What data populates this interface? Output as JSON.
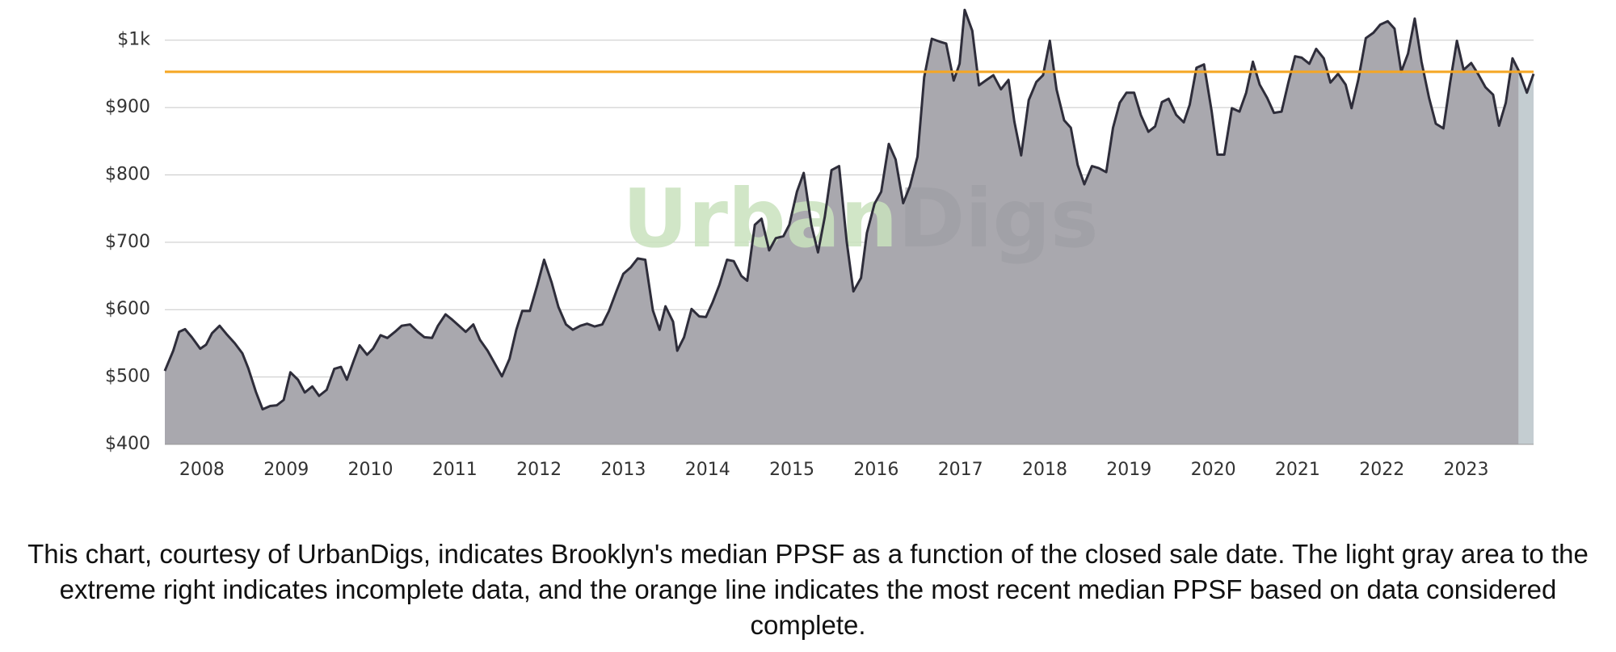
{
  "chart_data": {
    "type": "area",
    "watermark": [
      "Urban",
      "Digs"
    ],
    "caption": "This chart, courtesy of UrbanDigs, indicates Brooklyn's median PPSF as a function of the closed sale date. The light gray area to the extreme right indicates incomplete data, and the orange line indicates the most recent median PPSF based on data considered complete.",
    "x": [
      2007.56,
      2007.66,
      2007.73,
      2007.8,
      2007.88,
      2007.98,
      2008.05,
      2008.12,
      2008.21,
      2008.29,
      2008.39,
      2008.48,
      2008.55,
      2008.64,
      2008.72,
      2008.81,
      2008.89,
      2008.97,
      2009.05,
      2009.14,
      2009.22,
      2009.31,
      2009.39,
      2009.48,
      2009.57,
      2009.65,
      2009.72,
      2009.8,
      2009.87,
      2009.96,
      2010.03,
      2010.12,
      2010.2,
      2010.29,
      2010.37,
      2010.47,
      2010.56,
      2010.64,
      2010.73,
      2010.8,
      2010.89,
      2010.97,
      2011.06,
      2011.13,
      2011.22,
      2011.3,
      2011.39,
      2011.47,
      2011.56,
      2011.65,
      2011.73,
      2011.8,
      2011.89,
      2011.98,
      2012.06,
      2012.15,
      2012.23,
      2012.32,
      2012.4,
      2012.49,
      2012.57,
      2012.66,
      2012.75,
      2012.83,
      2012.92,
      2013.0,
      2013.09,
      2013.17,
      2013.26,
      2013.35,
      2013.43,
      2013.5,
      2013.59,
      2013.64,
      2013.72,
      2013.81,
      2013.9,
      2013.98,
      2014.06,
      2014.14,
      2014.23,
      2014.31,
      2014.4,
      2014.47,
      2014.56,
      2014.64,
      2014.73,
      2014.81,
      2014.9,
      2014.97,
      2015.06,
      2015.14,
      2015.23,
      2015.31,
      2015.39,
      2015.47,
      2015.56,
      2015.65,
      2015.73,
      2015.82,
      2015.89,
      2015.98,
      2016.06,
      2016.15,
      2016.23,
      2016.32,
      2016.4,
      2016.49,
      2016.57,
      2016.66,
      2016.75,
      2016.83,
      2016.92,
      2016.99,
      2017.05,
      2017.14,
      2017.22,
      2017.31,
      2017.39,
      2017.48,
      2017.57,
      2017.64,
      2017.72,
      2017.81,
      2017.9,
      2017.98,
      2018.06,
      2018.14,
      2018.23,
      2018.31,
      2018.39,
      2018.47,
      2018.56,
      2018.64,
      2018.73,
      2018.81,
      2018.89,
      2018.97,
      2019.06,
      2019.14,
      2019.23,
      2019.31,
      2019.39,
      2019.47,
      2019.56,
      2019.65,
      2019.72,
      2019.8,
      2019.89,
      2019.98,
      2020.05,
      2020.13,
      2020.22,
      2020.31,
      2020.39,
      2020.47,
      2020.55,
      2020.64,
      2020.72,
      2020.81,
      2020.89,
      2020.97,
      2021.05,
      2021.14,
      2021.22,
      2021.31,
      2021.39,
      2021.48,
      2021.57,
      2021.64,
      2021.72,
      2021.81,
      2021.9,
      2021.98,
      2022.07,
      2022.15,
      2022.23,
      2022.31,
      2022.39,
      2022.47,
      2022.56,
      2022.64,
      2022.73,
      2022.81,
      2022.89,
      2022.97,
      2023.06,
      2023.14,
      2023.23,
      2023.32,
      2023.39,
      2023.47,
      2023.55,
      2023.63,
      2023.72,
      2023.8
    ],
    "values": [
      509,
      539,
      567,
      571,
      559,
      542,
      548,
      565,
      576,
      564,
      550,
      535,
      513,
      478,
      452,
      457,
      458,
      466,
      507,
      496,
      477,
      486,
      472,
      481,
      512,
      515,
      496,
      524,
      547,
      533,
      542,
      562,
      558,
      567,
      576,
      578,
      567,
      559,
      558,
      576,
      593,
      585,
      575,
      567,
      578,
      555,
      539,
      521,
      501,
      527,
      570,
      598,
      598,
      637,
      674,
      640,
      604,
      578,
      570,
      576,
      579,
      575,
      578,
      598,
      628,
      653,
      663,
      676,
      674,
      599,
      570,
      605,
      582,
      539,
      559,
      601,
      590,
      589,
      611,
      637,
      674,
      672,
      650,
      643,
      726,
      735,
      688,
      706,
      709,
      726,
      775,
      803,
      726,
      685,
      738,
      807,
      813,
      701,
      627,
      647,
      714,
      757,
      775,
      846,
      823,
      758,
      783,
      827,
      945,
      1002,
      998,
      995,
      940,
      965,
      1045,
      1014,
      933,
      941,
      948,
      927,
      941,
      879,
      829,
      911,
      938,
      948,
      999,
      927,
      881,
      870,
      815,
      786,
      813,
      810,
      804,
      870,
      907,
      922,
      922,
      889,
      864,
      872,
      908,
      913,
      889,
      878,
      904,
      959,
      964,
      895,
      830,
      830,
      899,
      894,
      922,
      968,
      934,
      914,
      892,
      894,
      937,
      976,
      974,
      965,
      987,
      973,
      937,
      950,
      934,
      899,
      941,
      1003,
      1011,
      1023,
      1028,
      1017,
      953,
      980,
      1032,
      968,
      914,
      876,
      869,
      937,
      999,
      956,
      966,
      950,
      930,
      919,
      873,
      907,
      973,
      953,
      922,
      950
    ],
    "color": "#a9a8ae",
    "line_color": "#2e2d3a",
    "reference_line": {
      "value": 953,
      "color": "#f5a623"
    },
    "incomplete_from": 2023.62,
    "incomplete_color": "#c4cdd1",
    "xlim": [
      2007.56,
      2023.8
    ],
    "xticks": [
      2008,
      2009,
      2010,
      2011,
      2012,
      2013,
      2014,
      2015,
      2016,
      2017,
      2018,
      2019,
      2020,
      2021,
      2022,
      2023
    ],
    "ylim": [
      400,
      1050
    ],
    "yticks": [
      {
        "value": 400,
        "label": "$400"
      },
      {
        "value": 500,
        "label": "$500"
      },
      {
        "value": 600,
        "label": "$600"
      },
      {
        "value": 700,
        "label": "$700"
      },
      {
        "value": 800,
        "label": "$800"
      },
      {
        "value": 900,
        "label": "$900"
      },
      {
        "value": 1000,
        "label": "$1k"
      }
    ],
    "grid": true
  }
}
